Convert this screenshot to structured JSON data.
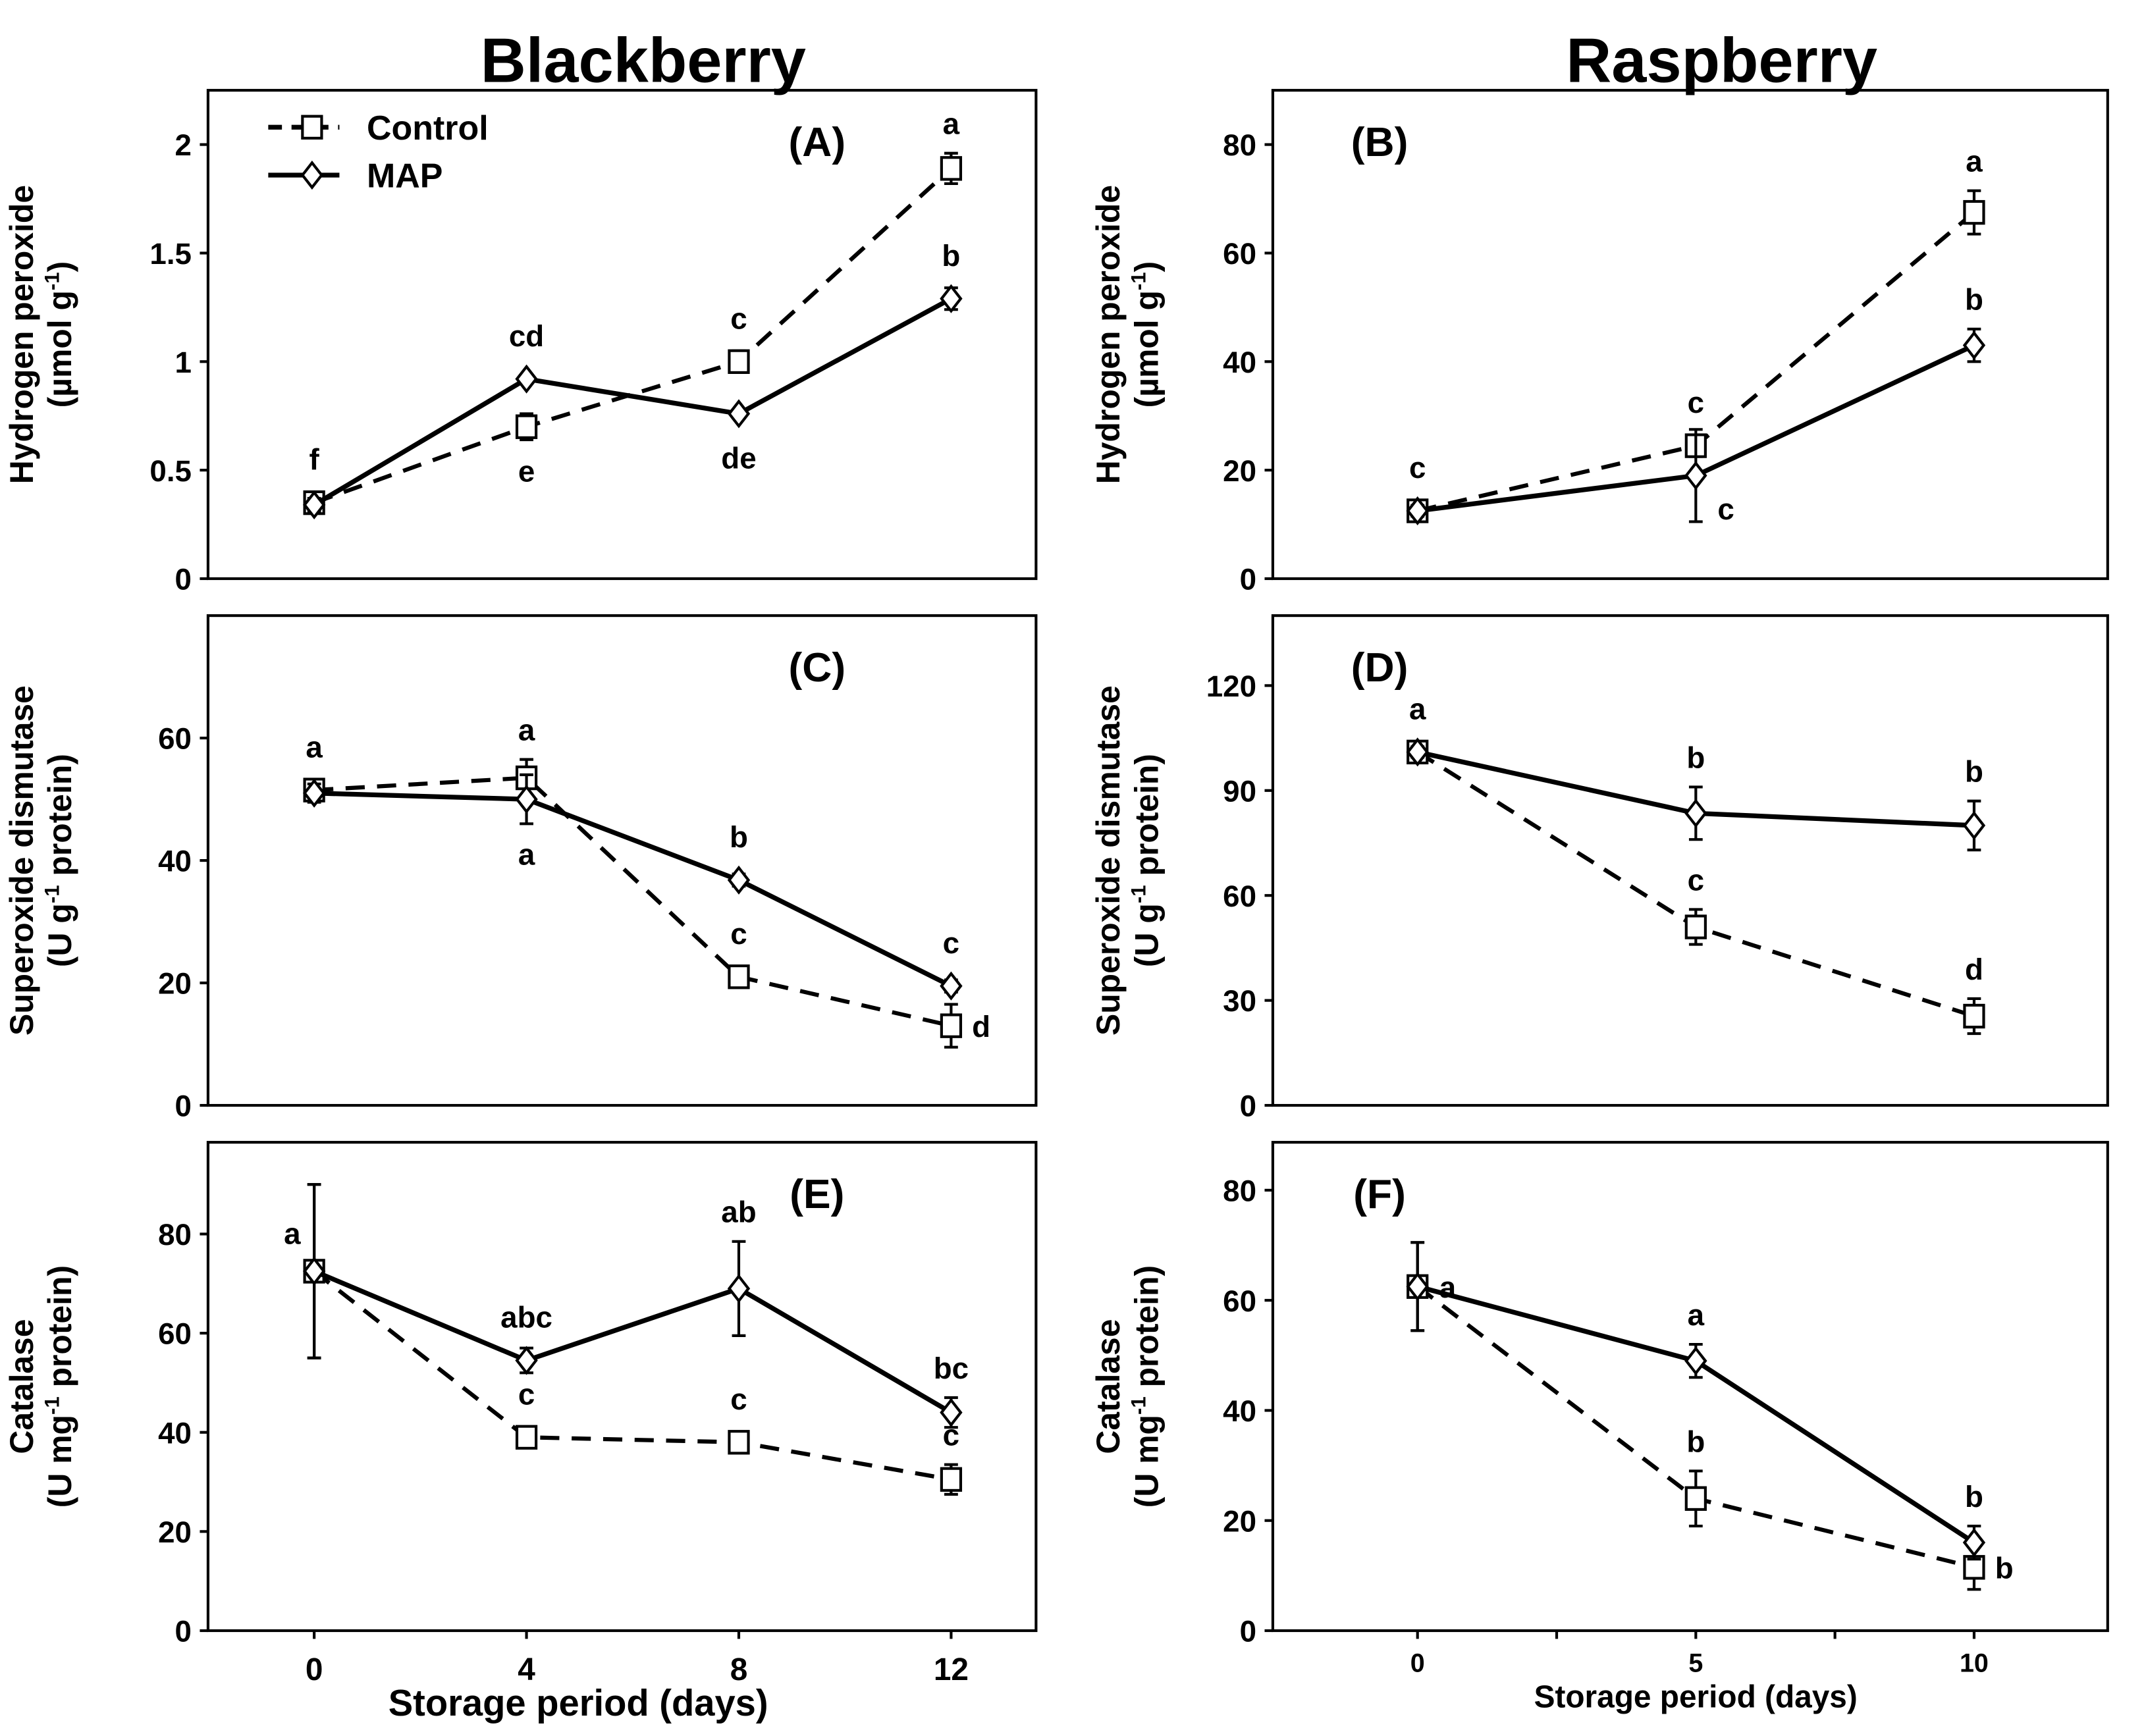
{
  "column_titles": [
    "Blackberry",
    "Raspberry"
  ],
  "legend": [
    {
      "name": "Control",
      "marker": "square",
      "line": "dashed"
    },
    {
      "name": "MAP",
      "marker": "diamond",
      "line": "solid"
    }
  ],
  "chart_data": [
    {
      "type": "line",
      "panel": "(A)",
      "column": 0,
      "row": 0,
      "x": [
        0,
        4,
        8,
        12
      ],
      "xlim": [
        -2,
        13.6
      ],
      "ylim": [
        0,
        2.25
      ],
      "yticks": [
        0,
        0.5,
        1,
        1.5,
        2
      ],
      "ytick_labels": [
        "0",
        "0.5",
        "1",
        "1.5",
        "2"
      ],
      "ylabel": [
        "Hydrogen peroxide",
        "(µmol g",
        "-1",
        ")"
      ],
      "series": [
        {
          "name": "Control",
          "values": [
            0.35,
            0.7,
            1.0,
            1.89
          ],
          "errors": [
            0.03,
            0.06,
            0.05,
            0.07
          ]
        },
        {
          "name": "MAP",
          "values": [
            0.34,
            0.92,
            0.76,
            1.29
          ],
          "errors": [
            0.03,
            0.02,
            0.02,
            0.05
          ]
        }
      ],
      "annotations": [
        {
          "text": "f",
          "x": 0,
          "y": 0.35,
          "pos": "above"
        },
        {
          "text": "e",
          "x": 4,
          "y": 0.7,
          "pos": "below"
        },
        {
          "text": "cd",
          "x": 4,
          "y": 0.92,
          "pos": "above"
        },
        {
          "text": "c",
          "x": 8,
          "y": 1.0,
          "pos": "above"
        },
        {
          "text": "de",
          "x": 8,
          "y": 0.76,
          "pos": "below"
        },
        {
          "text": "a",
          "x": 12,
          "y": 1.89,
          "pos": "above"
        },
        {
          "text": "b",
          "x": 12,
          "y": 1.29,
          "pos": "above"
        }
      ]
    },
    {
      "type": "line",
      "panel": "(B)",
      "column": 1,
      "row": 0,
      "x": [
        0,
        5,
        10
      ],
      "xlim": [
        -2.6,
        12.4
      ],
      "ylim": [
        0,
        90
      ],
      "yticks": [
        0,
        20,
        40,
        60,
        80
      ],
      "ytick_labels": [
        "0",
        "20",
        "40",
        "60",
        "80"
      ],
      "ylabel": [
        "Hydrogen peroxide",
        "(µmol g",
        "-1",
        ")"
      ],
      "series": [
        {
          "name": "Control",
          "values": [
            12.5,
            24.5,
            67.5
          ],
          "errors": [
            1,
            2,
            4
          ]
        },
        {
          "name": "MAP",
          "values": [
            12.5,
            19,
            43
          ],
          "errors": [
            1,
            8.5,
            3
          ]
        }
      ],
      "annotations": [
        {
          "text": "c",
          "x": 0,
          "y": 12.5,
          "pos": "above"
        },
        {
          "text": "c",
          "x": 5,
          "y": 24.5,
          "pos": "above"
        },
        {
          "text": "c",
          "x": 5,
          "y": 19,
          "pos": "right-below"
        },
        {
          "text": "a",
          "x": 10,
          "y": 67.5,
          "pos": "above"
        },
        {
          "text": "b",
          "x": 10,
          "y": 43,
          "pos": "above"
        }
      ]
    },
    {
      "type": "line",
      "panel": "(C)",
      "column": 0,
      "row": 1,
      "x": [
        0,
        4,
        8,
        12
      ],
      "xlim": [
        -2,
        13.6
      ],
      "ylim": [
        0,
        80
      ],
      "yticks": [
        0,
        20,
        40,
        60
      ],
      "ytick_labels": [
        "0",
        "20",
        "40",
        "60"
      ],
      "ylabel": [
        "Superoxide dismutase",
        "(U g",
        "-1",
        " protein)"
      ],
      "series": [
        {
          "name": "Control",
          "values": [
            51.5,
            53.5,
            21,
            13
          ],
          "errors": [
            1.5,
            3,
            1.5,
            3.5
          ]
        },
        {
          "name": "MAP",
          "values": [
            51,
            50,
            36.8,
            19.5
          ],
          "errors": [
            1.5,
            4,
            1,
            1
          ]
        }
      ],
      "annotations": [
        {
          "text": "a",
          "x": 0,
          "y": 51.5,
          "pos": "above"
        },
        {
          "text": "a",
          "x": 4,
          "y": 53.5,
          "pos": "above"
        },
        {
          "text": "a",
          "x": 4,
          "y": 50,
          "pos": "below"
        },
        {
          "text": "b",
          "x": 8,
          "y": 36.8,
          "pos": "above"
        },
        {
          "text": "c",
          "x": 8,
          "y": 21,
          "pos": "above"
        },
        {
          "text": "c",
          "x": 12,
          "y": 19.5,
          "pos": "above"
        },
        {
          "text": "d",
          "x": 12,
          "y": 13,
          "pos": "right"
        }
      ]
    },
    {
      "type": "line",
      "panel": "(D)",
      "column": 1,
      "row": 1,
      "x": [
        0,
        5,
        10
      ],
      "xlim": [
        -2.6,
        12.4
      ],
      "ylim": [
        0,
        140
      ],
      "yticks": [
        0,
        30,
        60,
        90,
        120
      ],
      "ytick_labels": [
        "0",
        "30",
        "60",
        "90",
        "120"
      ],
      "ylabel": [
        "Superoxide dismutase",
        "(U g",
        "-1",
        " protein)"
      ],
      "series": [
        {
          "name": "Control",
          "values": [
            101,
            51,
            25.5
          ],
          "errors": [
            1.5,
            5,
            5
          ]
        },
        {
          "name": "MAP",
          "values": [
            101,
            83.5,
            80
          ],
          "errors": [
            1.5,
            7.5,
            7
          ]
        }
      ],
      "annotations": [
        {
          "text": "a",
          "x": 0,
          "y": 101,
          "pos": "above"
        },
        {
          "text": "b",
          "x": 5,
          "y": 83.5,
          "pos": "above"
        },
        {
          "text": "c",
          "x": 5,
          "y": 51,
          "pos": "above"
        },
        {
          "text": "b",
          "x": 10,
          "y": 80,
          "pos": "above"
        },
        {
          "text": "d",
          "x": 10,
          "y": 25.5,
          "pos": "above"
        }
      ]
    },
    {
      "type": "line",
      "panel": "(E)",
      "column": 0,
      "row": 2,
      "x": [
        0,
        4,
        8,
        12
      ],
      "xlim": [
        -2,
        13.6
      ],
      "ylim": [
        0,
        98.5
      ],
      "yticks": [
        0,
        20,
        40,
        60,
        80
      ],
      "ytick_labels": [
        "0",
        "20",
        "40",
        "60",
        "80"
      ],
      "xticks": [
        0,
        4,
        8,
        12
      ],
      "xtick_labels": [
        "0",
        "4",
        "8",
        "12"
      ],
      "xlabel": "Storage period (days)",
      "ylabel": [
        "Catalase",
        "(U mg",
        "-1",
        " protein)"
      ],
      "series": [
        {
          "name": "Control",
          "values": [
            72.5,
            39,
            38,
            30.5
          ],
          "errors": [
            17.5,
            1.5,
            1,
            3
          ]
        },
        {
          "name": "MAP",
          "values": [
            72.5,
            54.5,
            69,
            44
          ],
          "errors": [
            17.5,
            2.5,
            9.5,
            3
          ]
        }
      ],
      "annotations": [
        {
          "text": "a",
          "x": 0,
          "y": 72.5,
          "pos": "left"
        },
        {
          "text": "abc",
          "x": 4,
          "y": 54.5,
          "pos": "above"
        },
        {
          "text": "c",
          "x": 4,
          "y": 39,
          "pos": "above"
        },
        {
          "text": "ab",
          "x": 8,
          "y": 69,
          "pos": "above-high"
        },
        {
          "text": "c",
          "x": 8,
          "y": 38,
          "pos": "above"
        },
        {
          "text": "bc",
          "x": 12,
          "y": 44,
          "pos": "above"
        },
        {
          "text": "c",
          "x": 12,
          "y": 30.5,
          "pos": "above"
        }
      ]
    },
    {
      "type": "line",
      "panel": "(F)",
      "column": 1,
      "row": 2,
      "x": [
        0,
        5,
        10
      ],
      "xlim": [
        -2.6,
        12.4
      ],
      "ylim": [
        0,
        88.7
      ],
      "yticks": [
        0,
        20,
        40,
        60,
        80
      ],
      "ytick_labels": [
        "0",
        "20",
        "40",
        "60",
        "80"
      ],
      "xticks": [
        0,
        2.5,
        5,
        7.5,
        10
      ],
      "xtick_labels": [
        "0",
        "",
        "5",
        "",
        "10"
      ],
      "xlabel": "Storage period (days)",
      "ylabel": [
        "Catalase",
        "(U mg",
        "-1",
        " protein)"
      ],
      "series": [
        {
          "name": "Control",
          "values": [
            62.5,
            24,
            11.5
          ],
          "errors": [
            8,
            5,
            4
          ]
        },
        {
          "name": "MAP",
          "values": [
            62.5,
            49,
            16
          ],
          "errors": [
            8,
            3,
            3
          ]
        }
      ],
      "annotations": [
        {
          "text": "a",
          "x": 0,
          "y": 62.5,
          "pos": "right"
        },
        {
          "text": "a",
          "x": 5,
          "y": 49,
          "pos": "above"
        },
        {
          "text": "b",
          "x": 5,
          "y": 24,
          "pos": "above"
        },
        {
          "text": "b",
          "x": 10,
          "y": 16,
          "pos": "above"
        },
        {
          "text": "b",
          "x": 10,
          "y": 11.5,
          "pos": "right"
        }
      ]
    }
  ]
}
